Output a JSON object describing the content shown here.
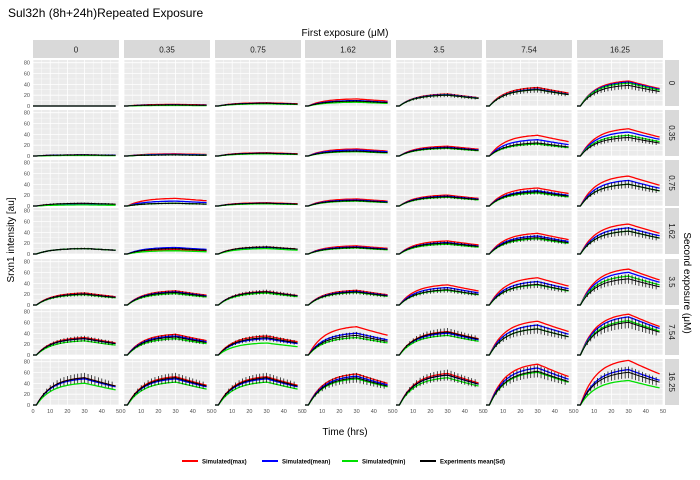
{
  "chart_data": {
    "type": "line",
    "title": "Sul32h (8h+24h)Repeated Exposure",
    "column_facet_title": "First exposure (μM)",
    "row_facet_title": "Second exposure (μM)",
    "xlabel": "Time (hrs)",
    "ylabel": "Srxn1 intensity [au]",
    "xlim": [
      0,
      50
    ],
    "ylim": [
      0,
      85
    ],
    "x_ticks": [
      0,
      10,
      20,
      30,
      40,
      50
    ],
    "y_ticks": [
      0,
      20,
      40,
      60,
      80
    ],
    "grid": true,
    "legend_position": "bottom",
    "first_exposure_levels": [
      "0",
      "0.35",
      "0.75",
      "1.62",
      "3.5",
      "7.54",
      "16.25"
    ],
    "second_exposure_levels": [
      "0",
      "0.35",
      "0.75",
      "1.62",
      "3.5",
      "7.54",
      "16.25"
    ],
    "series": [
      {
        "name": "Simulated(max)",
        "color": "#ff0000"
      },
      {
        "name": "Simulated(mean)",
        "color": "#0000ff"
      },
      {
        "name": "Simulated(min)",
        "color": "#00e000"
      },
      {
        "name": "Experiments mean(Sd)",
        "color": "#000000"
      }
    ],
    "panels": [
      {
        "row": "0",
        "first_exposure": "0",
        "peaks": {
          "max": 0,
          "mean": 0,
          "min": 0,
          "exp": 0
        }
      },
      {
        "row": "0",
        "first_exposure": "0.35",
        "peaks": {
          "max": 3,
          "mean": 2,
          "min": 1,
          "exp": 2
        }
      },
      {
        "row": "0",
        "first_exposure": "0.75",
        "peaks": {
          "max": 6,
          "mean": 5,
          "min": 4,
          "exp": 5
        }
      },
      {
        "row": "0",
        "first_exposure": "1.62",
        "peaks": {
          "max": 13,
          "mean": 10,
          "min": 7,
          "exp": 9
        }
      },
      {
        "row": "0",
        "first_exposure": "3.5",
        "peaks": {
          "max": 22,
          "mean": 21,
          "min": 20,
          "exp": 20
        }
      },
      {
        "row": "0",
        "first_exposure": "7.54",
        "peaks": {
          "max": 34,
          "mean": 31,
          "min": 30,
          "exp": 30
        }
      },
      {
        "row": "0",
        "first_exposure": "16.25",
        "peaks": {
          "max": 46,
          "mean": 44,
          "min": 42,
          "exp": 38
        }
      },
      {
        "row": "0.35",
        "first_exposure": "0",
        "peaks": {
          "max": 2,
          "mean": 2,
          "min": 1,
          "exp": 2
        }
      },
      {
        "row": "0.35",
        "first_exposure": "0.35",
        "peaks": {
          "max": 4,
          "mean": 3,
          "min": 2,
          "exp": 2
        }
      },
      {
        "row": "0.35",
        "first_exposure": "0.75",
        "peaks": {
          "max": 6,
          "mean": 5,
          "min": 4,
          "exp": 5
        }
      },
      {
        "row": "0.35",
        "first_exposure": "1.62",
        "peaks": {
          "max": 13,
          "mean": 11,
          "min": 8,
          "exp": 9
        }
      },
      {
        "row": "0.35",
        "first_exposure": "3.5",
        "peaks": {
          "max": 18,
          "mean": 16,
          "min": 14,
          "exp": 15
        }
      },
      {
        "row": "0.35",
        "first_exposure": "7.54",
        "peaks": {
          "max": 38,
          "mean": 30,
          "min": 22,
          "exp": 24
        }
      },
      {
        "row": "0.35",
        "first_exposure": "16.25",
        "peaks": {
          "max": 50,
          "mean": 44,
          "min": 38,
          "exp": 34
        }
      },
      {
        "row": "0.75",
        "first_exposure": "0",
        "peaks": {
          "max": 4,
          "mean": 3,
          "min": 2,
          "exp": 5
        }
      },
      {
        "row": "0.75",
        "first_exposure": "0.35",
        "peaks": {
          "max": 14,
          "mean": 9,
          "min": 5,
          "exp": 5
        }
      },
      {
        "row": "0.75",
        "first_exposure": "0.75",
        "peaks": {
          "max": 6,
          "mean": 5,
          "min": 4,
          "exp": 5
        }
      },
      {
        "row": "0.75",
        "first_exposure": "1.62",
        "peaks": {
          "max": 13,
          "mean": 11,
          "min": 9,
          "exp": 10
        }
      },
      {
        "row": "0.75",
        "first_exposure": "3.5",
        "peaks": {
          "max": 20,
          "mean": 18,
          "min": 16,
          "exp": 17
        }
      },
      {
        "row": "0.75",
        "first_exposure": "7.54",
        "peaks": {
          "max": 33,
          "mean": 28,
          "min": 24,
          "exp": 26
        }
      },
      {
        "row": "0.75",
        "first_exposure": "16.25",
        "peaks": {
          "max": 55,
          "mean": 47,
          "min": 40,
          "exp": 40
        }
      },
      {
        "row": "1.62",
        "first_exposure": "0",
        "peaks": {
          "max": 10,
          "mean": 10,
          "min": 10,
          "exp": 10
        }
      },
      {
        "row": "1.62",
        "first_exposure": "0.35",
        "peaks": {
          "max": 8,
          "mean": 12,
          "min": 6,
          "exp": 10
        }
      },
      {
        "row": "1.62",
        "first_exposure": "0.75",
        "peaks": {
          "max": 13,
          "mean": 12,
          "min": 10,
          "exp": 13
        }
      },
      {
        "row": "1.62",
        "first_exposure": "1.62",
        "peaks": {
          "max": 15,
          "mean": 13,
          "min": 11,
          "exp": 12
        }
      },
      {
        "row": "1.62",
        "first_exposure": "3.5",
        "peaks": {
          "max": 24,
          "mean": 21,
          "min": 18,
          "exp": 20
        }
      },
      {
        "row": "1.62",
        "first_exposure": "7.54",
        "peaks": {
          "max": 38,
          "mean": 33,
          "min": 28,
          "exp": 30
        }
      },
      {
        "row": "1.62",
        "first_exposure": "16.25",
        "peaks": {
          "max": 55,
          "mean": 48,
          "min": 42,
          "exp": 42
        }
      },
      {
        "row": "3.5",
        "first_exposure": "0",
        "peaks": {
          "max": 22,
          "mean": 20,
          "min": 19,
          "exp": 20
        }
      },
      {
        "row": "3.5",
        "first_exposure": "0.35",
        "peaks": {
          "max": 26,
          "mean": 24,
          "min": 21,
          "exp": 23
        }
      },
      {
        "row": "3.5",
        "first_exposure": "0.75",
        "peaks": {
          "max": 25,
          "mean": 24,
          "min": 22,
          "exp": 24
        }
      },
      {
        "row": "3.5",
        "first_exposure": "1.62",
        "peaks": {
          "max": 27,
          "mean": 25,
          "min": 23,
          "exp": 24
        }
      },
      {
        "row": "3.5",
        "first_exposure": "3.5",
        "peaks": {
          "max": 37,
          "mean": 32,
          "min": 27,
          "exp": 28
        }
      },
      {
        "row": "3.5",
        "first_exposure": "7.54",
        "peaks": {
          "max": 50,
          "mean": 43,
          "min": 37,
          "exp": 38
        }
      },
      {
        "row": "3.5",
        "first_exposure": "16.25",
        "peaks": {
          "max": 66,
          "mean": 60,
          "min": 53,
          "exp": 48
        }
      },
      {
        "row": "7.54",
        "first_exposure": "0",
        "peaks": {
          "max": 32,
          "mean": 30,
          "min": 26,
          "exp": 30
        }
      },
      {
        "row": "7.54",
        "first_exposure": "0.35",
        "peaks": {
          "max": 38,
          "mean": 35,
          "min": 30,
          "exp": 33
        }
      },
      {
        "row": "7.54",
        "first_exposure": "0.75",
        "peaks": {
          "max": 35,
          "mean": 30,
          "min": 22,
          "exp": 32
        }
      },
      {
        "row": "7.54",
        "first_exposure": "1.62",
        "peaks": {
          "max": 52,
          "mean": 40,
          "min": 32,
          "exp": 36
        }
      },
      {
        "row": "7.54",
        "first_exposure": "3.5",
        "peaks": {
          "max": 43,
          "mean": 40,
          "min": 36,
          "exp": 42
        }
      },
      {
        "row": "7.54",
        "first_exposure": "7.54",
        "peaks": {
          "max": 62,
          "mean": 55,
          "min": 48,
          "exp": 48
        }
      },
      {
        "row": "7.54",
        "first_exposure": "16.25",
        "peaks": {
          "max": 75,
          "mean": 70,
          "min": 63,
          "exp": 60
        }
      },
      {
        "row": "16.25",
        "first_exposure": "0",
        "peaks": {
          "max": 50,
          "mean": 48,
          "min": 40,
          "exp": 50
        }
      },
      {
        "row": "16.25",
        "first_exposure": "0.35",
        "peaks": {
          "max": 52,
          "mean": 48,
          "min": 42,
          "exp": 50
        }
      },
      {
        "row": "16.25",
        "first_exposure": "0.75",
        "peaks": {
          "max": 52,
          "mean": 48,
          "min": 42,
          "exp": 50
        }
      },
      {
        "row": "16.25",
        "first_exposure": "1.62",
        "peaks": {
          "max": 57,
          "mean": 53,
          "min": 48,
          "exp": 50
        }
      },
      {
        "row": "16.25",
        "first_exposure": "3.5",
        "peaks": {
          "max": 58,
          "mean": 55,
          "min": 50,
          "exp": 55
        }
      },
      {
        "row": "16.25",
        "first_exposure": "7.54",
        "peaks": {
          "max": 75,
          "mean": 68,
          "min": 60,
          "exp": 62
        }
      },
      {
        "row": "16.25",
        "first_exposure": "16.25",
        "peaks": {
          "max": 82,
          "mean": 65,
          "min": 45,
          "exp": 60
        }
      }
    ]
  }
}
